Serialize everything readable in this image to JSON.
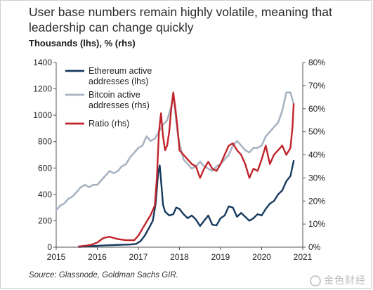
{
  "title": "User base numbers remain highly volatile, meaning that leadership can change quickly",
  "subtitle": "Thousands (lhs), % (rhs)",
  "source": "Source: Glassnode, Goldman Sachs GIR.",
  "watermark": "金色财经",
  "chart_data": {
    "type": "line",
    "x_ticks": [
      "2015",
      "2016",
      "2017",
      "2018",
      "2019",
      "2020",
      "2021"
    ],
    "left_axis": {
      "ticks": [
        "0",
        "200",
        "400",
        "600",
        "800",
        "1000",
        "1200",
        "1400"
      ],
      "ylim": [
        0,
        1400
      ]
    },
    "right_axis": {
      "ticks": [
        "0%",
        "10%",
        "20%",
        "30%",
        "40%",
        "50%",
        "60%",
        "70%",
        "80%"
      ],
      "ylim": [
        0,
        80
      ]
    },
    "legend": [
      "Ethereum active addresses (lhs)",
      "Bitcoin active addresses (rhs)",
      "Ratio (rhs)"
    ],
    "series": [
      {
        "name": "Ethereum active addresses (lhs)",
        "axis": "left",
        "color": "#163a5f",
        "x": [
          2015.55,
          2015.7,
          2015.85,
          2016.0,
          2016.2,
          2016.4,
          2016.6,
          2016.8,
          2016.95,
          2017.05,
          2017.15,
          2017.25,
          2017.35,
          2017.42,
          2017.48,
          2017.52,
          2017.56,
          2017.6,
          2017.65,
          2017.75,
          2017.85,
          2017.92,
          2018.0,
          2018.1,
          2018.2,
          2018.3,
          2018.4,
          2018.5,
          2018.6,
          2018.7,
          2018.8,
          2018.9,
          2019.0,
          2019.1,
          2019.2,
          2019.3,
          2019.4,
          2019.5,
          2019.6,
          2019.7,
          2019.8,
          2019.9,
          2020.0,
          2020.1,
          2020.2,
          2020.3,
          2020.4,
          2020.5,
          2020.6,
          2020.7,
          2020.78
        ],
        "values": [
          2,
          5,
          8,
          10,
          14,
          16,
          18,
          20,
          25,
          45,
          85,
          140,
          200,
          330,
          560,
          620,
          470,
          320,
          270,
          240,
          250,
          300,
          290,
          250,
          220,
          240,
          210,
          160,
          200,
          240,
          170,
          165,
          220,
          240,
          310,
          300,
          230,
          260,
          230,
          200,
          220,
          250,
          240,
          290,
          330,
          350,
          400,
          430,
          500,
          540,
          655
        ]
      },
      {
        "name": "Bitcoin active addresses (rhs)",
        "axis": "right",
        "color": "#a9b4c2",
        "x": [
          2015.0,
          2015.1,
          2015.2,
          2015.3,
          2015.4,
          2015.5,
          2015.6,
          2015.7,
          2015.8,
          2015.9,
          2016.0,
          2016.1,
          2016.2,
          2016.3,
          2016.4,
          2016.5,
          2016.6,
          2016.7,
          2016.8,
          2016.9,
          2017.0,
          2017.1,
          2017.2,
          2017.3,
          2017.4,
          2017.5,
          2017.6,
          2017.7,
          2017.8,
          2017.85,
          2017.9,
          2017.95,
          2018.0,
          2018.1,
          2018.2,
          2018.3,
          2018.4,
          2018.5,
          2018.6,
          2018.7,
          2018.8,
          2018.9,
          2019.0,
          2019.1,
          2019.2,
          2019.3,
          2019.4,
          2019.5,
          2019.6,
          2019.7,
          2019.8,
          2019.9,
          2020.0,
          2020.1,
          2020.2,
          2020.3,
          2020.4,
          2020.5,
          2020.6,
          2020.7,
          2020.78
        ],
        "values": [
          16,
          18,
          19,
          21,
          22,
          24,
          26,
          27,
          26,
          27,
          27,
          29,
          31,
          33,
          32,
          33,
          35,
          36,
          39,
          41,
          43,
          44,
          48,
          46,
          47,
          50,
          53,
          55,
          61,
          66,
          58,
          50,
          45,
          38,
          36,
          34,
          35,
          37,
          35,
          34,
          33,
          35,
          36,
          38,
          40,
          44,
          46,
          44,
          42,
          41,
          43,
          43,
          44,
          48,
          50,
          52,
          54,
          59,
          67,
          67,
          62
        ]
      },
      {
        "name": "Ratio (rhs)",
        "axis": "right",
        "color": "#c0242b",
        "x": [
          2015.55,
          2015.7,
          2015.85,
          2016.0,
          2016.15,
          2016.3,
          2016.5,
          2016.7,
          2016.9,
          2017.0,
          2017.1,
          2017.2,
          2017.3,
          2017.4,
          2017.45,
          2017.5,
          2017.55,
          2017.6,
          2017.65,
          2017.7,
          2017.75,
          2017.8,
          2017.85,
          2017.9,
          2017.95,
          2018.0,
          2018.1,
          2018.2,
          2018.3,
          2018.4,
          2018.5,
          2018.6,
          2018.7,
          2018.8,
          2018.9,
          2019.0,
          2019.1,
          2019.2,
          2019.3,
          2019.4,
          2019.5,
          2019.6,
          2019.7,
          2019.8,
          2019.9,
          2020.0,
          2020.1,
          2020.2,
          2020.3,
          2020.4,
          2020.5,
          2020.6,
          2020.7,
          2020.75,
          2020.78
        ],
        "values": [
          0.3,
          0.6,
          1,
          2,
          4,
          4.5,
          3.5,
          3,
          3,
          5,
          8,
          11,
          14,
          18,
          30,
          50,
          58,
          48,
          42,
          44,
          50,
          60,
          67,
          60,
          52,
          42,
          40,
          38,
          36,
          35,
          30,
          34,
          37,
          34,
          33,
          36,
          40,
          44,
          45,
          42,
          40,
          36,
          30,
          34,
          33,
          38,
          44,
          36,
          40,
          42,
          44,
          40,
          43,
          52,
          62
        ]
      }
    ]
  }
}
